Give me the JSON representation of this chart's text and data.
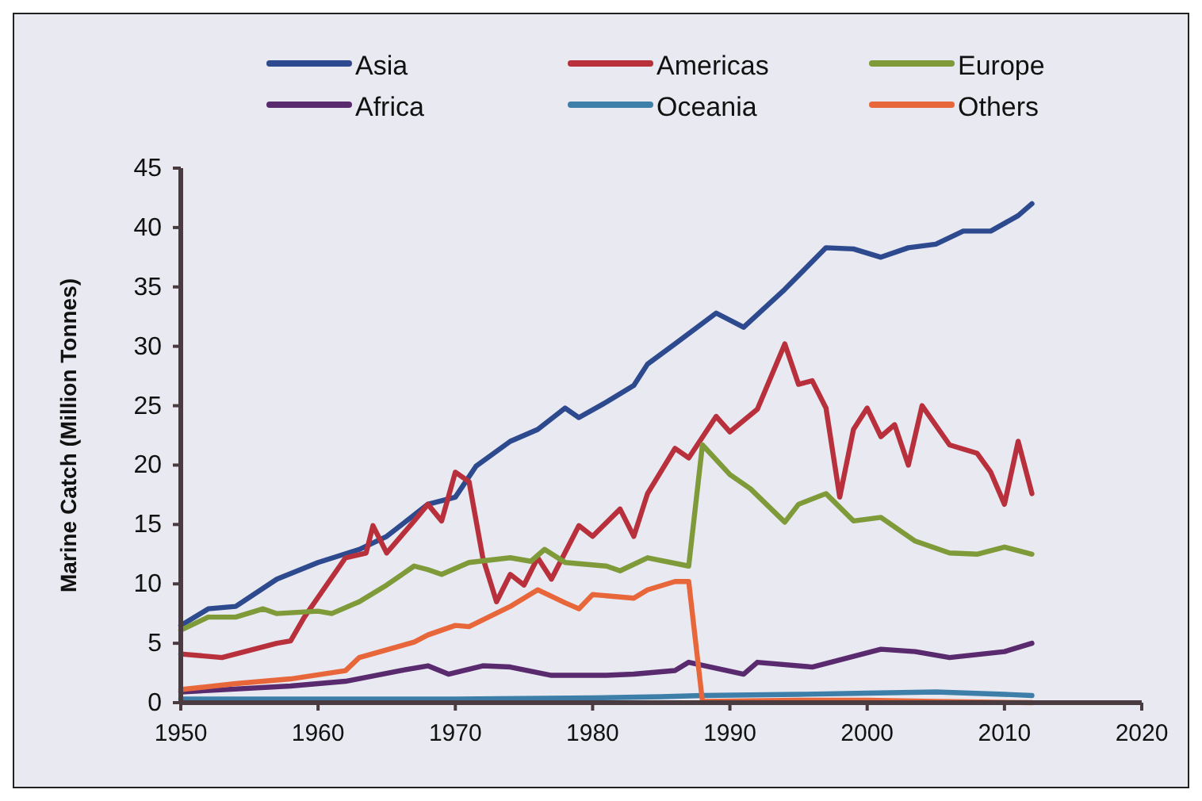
{
  "chart_data": {
    "type": "line",
    "ylabel": "Marine Catch (Million Tonnes)",
    "xlim": [
      1950,
      2020
    ],
    "xticks": [
      1950,
      1960,
      1970,
      1980,
      1990,
      2000,
      2010,
      2020
    ],
    "ylim": [
      0,
      45
    ],
    "yticks": [
      0,
      5,
      10,
      15,
      20,
      25,
      30,
      35,
      40,
      45
    ],
    "grid": false,
    "legend": "top",
    "marker": "none",
    "line_style": "solid",
    "series": [
      {
        "name": "Asia",
        "color": "#2e4a8f",
        "x": [
          1950,
          1952,
          1954,
          1957,
          1960,
          1963,
          1965,
          1968,
          1970,
          1971.5,
          1974,
          1976,
          1978,
          1979,
          1981,
          1983,
          1984,
          1986,
          1989,
          1991,
          1994,
          1997,
          1999,
          2001,
          2003,
          2005,
          2007,
          2009,
          2011,
          2012
        ],
        "values": [
          6.5,
          7.9,
          8.1,
          10.4,
          11.8,
          12.9,
          14,
          16.7,
          17.3,
          19.9,
          22,
          23,
          24.8,
          24,
          25.3,
          26.7,
          28.5,
          30.2,
          32.8,
          31.6,
          34.8,
          38.3,
          38.2,
          37.5,
          38.3,
          38.6,
          39.7,
          39.7,
          41,
          42
        ]
      },
      {
        "name": "Americas",
        "color": "#b8303b",
        "x": [
          1950,
          1953,
          1957,
          1958,
          1959,
          1962,
          1963.5,
          1964,
          1965,
          1967,
          1968,
          1969,
          1970,
          1971,
          1972,
          1973,
          1974,
          1975,
          1976,
          1977,
          1979,
          1980,
          1982,
          1983,
          1984,
          1986,
          1987,
          1989,
          1990,
          1992,
          1994,
          1995,
          1996,
          1997,
          1998,
          1999,
          2000,
          2001,
          2002,
          2003,
          2004,
          2006,
          2008,
          2009,
          2010,
          2011,
          2012
        ],
        "values": [
          4.1,
          3.8,
          5,
          5.2,
          7.2,
          12.2,
          12.6,
          14.9,
          12.6,
          15.3,
          16.7,
          15.3,
          19.4,
          18.6,
          12.2,
          8.5,
          10.8,
          9.9,
          12.2,
          10.4,
          14.9,
          14,
          16.3,
          14,
          17.6,
          21.4,
          20.6,
          24.1,
          22.8,
          24.7,
          30.2,
          26.8,
          27.1,
          24.8,
          17.3,
          23,
          24.8,
          22.4,
          23.4,
          20,
          25,
          21.7,
          21,
          19.4,
          16.7,
          22,
          17.6
        ]
      },
      {
        "name": "Europe",
        "color": "#7f9a38",
        "x": [
          1950,
          1952,
          1954,
          1956,
          1957,
          1960,
          1961,
          1963,
          1965,
          1967,
          1968,
          1969,
          1971,
          1974,
          1975.5,
          1976.5,
          1978,
          1981,
          1982,
          1984,
          1987,
          1988,
          1990,
          1991.5,
          1994,
          1995,
          1997,
          1999,
          2001,
          2003.5,
          2006,
          2008,
          2010,
          2012
        ],
        "values": [
          6.1,
          7.2,
          7.2,
          7.9,
          7.5,
          7.7,
          7.5,
          8.5,
          9.9,
          11.5,
          11.2,
          10.8,
          11.8,
          12.2,
          11.9,
          12.9,
          11.8,
          11.5,
          11.1,
          12.2,
          11.5,
          21.7,
          19.2,
          18,
          15.2,
          16.7,
          17.6,
          15.3,
          15.6,
          13.6,
          12.6,
          12.5,
          13.1,
          12.5
        ]
      },
      {
        "name": "Africa",
        "color": "#5a2a6e",
        "x": [
          1950,
          1958,
          1962,
          1966,
          1968,
          1969.5,
          1972,
          1974,
          1977,
          1981,
          1983,
          1986,
          1987,
          1991,
          1992,
          1996,
          2001,
          2003.5,
          2006,
          2010,
          2012
        ],
        "values": [
          0.9,
          1.4,
          1.8,
          2.7,
          3.1,
          2.4,
          3.1,
          3,
          2.3,
          2.3,
          2.4,
          2.7,
          3.4,
          2.4,
          3.4,
          3,
          4.5,
          4.3,
          3.8,
          4.3,
          5
        ]
      },
      {
        "name": "Oceania",
        "color": "#3d7fa8",
        "x": [
          1950,
          1960,
          1970,
          1980,
          1985,
          1988,
          1995,
          2000,
          2005,
          2010,
          2012
        ],
        "values": [
          0.3,
          0.3,
          0.3,
          0.4,
          0.5,
          0.6,
          0.7,
          0.8,
          0.9,
          0.7,
          0.6
        ]
      },
      {
        "name": "Others",
        "color": "#e8673a",
        "x": [
          1950,
          1954,
          1958,
          1962,
          1963,
          1967,
          1968,
          1970,
          1971,
          1974,
          1976,
          1978,
          1979,
          1980,
          1983,
          1984,
          1986,
          1987,
          1988,
          1995,
          2000,
          2005,
          2012
        ],
        "values": [
          1.1,
          1.6,
          2,
          2.7,
          3.8,
          5.1,
          5.7,
          6.5,
          6.4,
          8.1,
          9.5,
          8.4,
          7.9,
          9.1,
          8.8,
          9.5,
          10.2,
          10.2,
          0.1,
          0.2,
          0.2,
          0.1,
          0
        ]
      }
    ]
  }
}
